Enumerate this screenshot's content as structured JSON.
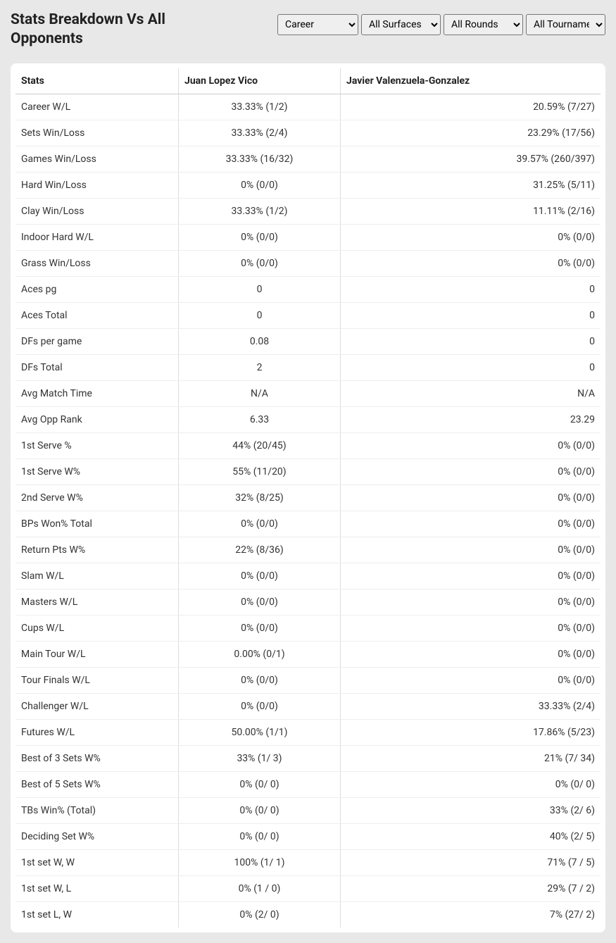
{
  "title": "Stats Breakdown Vs All Opponents",
  "filters": {
    "timeframe": {
      "selected": "Career",
      "options": [
        "Career"
      ]
    },
    "surface": {
      "selected": "All Surfaces",
      "options": [
        "All Surfaces"
      ]
    },
    "round": {
      "selected": "All Rounds",
      "options": [
        "All Rounds"
      ]
    },
    "tournament": {
      "selected": "All Tournaments",
      "options": [
        "All Tournaments"
      ]
    }
  },
  "table": {
    "headers": {
      "col1": "Stats",
      "col2": "Juan Lopez Vico",
      "col3": "Javier Valenzuela-Gonzalez"
    },
    "rows": [
      {
        "stat": "Career W/L",
        "p1": "33.33% (1/2)",
        "p2": "20.59% (7/27)"
      },
      {
        "stat": "Sets Win/Loss",
        "p1": "33.33% (2/4)",
        "p2": "23.29% (17/56)"
      },
      {
        "stat": "Games Win/Loss",
        "p1": "33.33% (16/32)",
        "p2": "39.57% (260/397)"
      },
      {
        "stat": "Hard Win/Loss",
        "p1": "0% (0/0)",
        "p2": "31.25% (5/11)"
      },
      {
        "stat": "Clay Win/Loss",
        "p1": "33.33% (1/2)",
        "p2": "11.11% (2/16)"
      },
      {
        "stat": "Indoor Hard W/L",
        "p1": "0% (0/0)",
        "p2": "0% (0/0)"
      },
      {
        "stat": "Grass Win/Loss",
        "p1": "0% (0/0)",
        "p2": "0% (0/0)"
      },
      {
        "stat": "Aces pg",
        "p1": "0",
        "p2": "0"
      },
      {
        "stat": "Aces Total",
        "p1": "0",
        "p2": "0"
      },
      {
        "stat": "DFs per game",
        "p1": "0.08",
        "p2": "0"
      },
      {
        "stat": "DFs Total",
        "p1": "2",
        "p2": "0"
      },
      {
        "stat": "Avg Match Time",
        "p1": "N/A",
        "p2": "N/A"
      },
      {
        "stat": "Avg Opp Rank",
        "p1": "6.33",
        "p2": "23.29"
      },
      {
        "stat": "1st Serve %",
        "p1": "44% (20/45)",
        "p2": "0% (0/0)"
      },
      {
        "stat": "1st Serve W%",
        "p1": "55% (11/20)",
        "p2": "0% (0/0)"
      },
      {
        "stat": "2nd Serve W%",
        "p1": "32% (8/25)",
        "p2": "0% (0/0)"
      },
      {
        "stat": "BPs Won% Total",
        "p1": "0% (0/0)",
        "p2": "0% (0/0)"
      },
      {
        "stat": "Return Pts W%",
        "p1": "22% (8/36)",
        "p2": "0% (0/0)"
      },
      {
        "stat": "Slam W/L",
        "p1": "0% (0/0)",
        "p2": "0% (0/0)"
      },
      {
        "stat": "Masters W/L",
        "p1": "0% (0/0)",
        "p2": "0% (0/0)"
      },
      {
        "stat": "Cups W/L",
        "p1": "0% (0/0)",
        "p2": "0% (0/0)"
      },
      {
        "stat": "Main Tour W/L",
        "p1": "0.00% (0/1)",
        "p2": "0% (0/0)"
      },
      {
        "stat": "Tour Finals W/L",
        "p1": "0% (0/0)",
        "p2": "0% (0/0)"
      },
      {
        "stat": "Challenger W/L",
        "p1": "0% (0/0)",
        "p2": "33.33% (2/4)"
      },
      {
        "stat": "Futures W/L",
        "p1": "50.00% (1/1)",
        "p2": "17.86% (5/23)"
      },
      {
        "stat": "Best of 3 Sets W%",
        "p1": "33% (1/ 3)",
        "p2": "21% (7/ 34)"
      },
      {
        "stat": "Best of 5 Sets W%",
        "p1": "0% (0/ 0)",
        "p2": "0% (0/ 0)"
      },
      {
        "stat": "TBs Win% (Total)",
        "p1": "0% (0/ 0)",
        "p2": "33% (2/ 6)"
      },
      {
        "stat": "Deciding Set W%",
        "p1": "0% (0/ 0)",
        "p2": "40% (2/ 5)"
      },
      {
        "stat": "1st set W, W",
        "p1": "100% (1/ 1)",
        "p2": "71% (7 / 5)"
      },
      {
        "stat": "1st set W, L",
        "p1": "0% (1 / 0)",
        "p2": "29% (7 / 2)"
      },
      {
        "stat": "1st set L, W",
        "p1": "0% (2/ 0)",
        "p2": "7% (27/ 2)"
      }
    ]
  },
  "colors": {
    "page_bg": "#e8e8e8",
    "table_bg": "#ffffff",
    "text": "#222222",
    "border": "#dddddd"
  }
}
